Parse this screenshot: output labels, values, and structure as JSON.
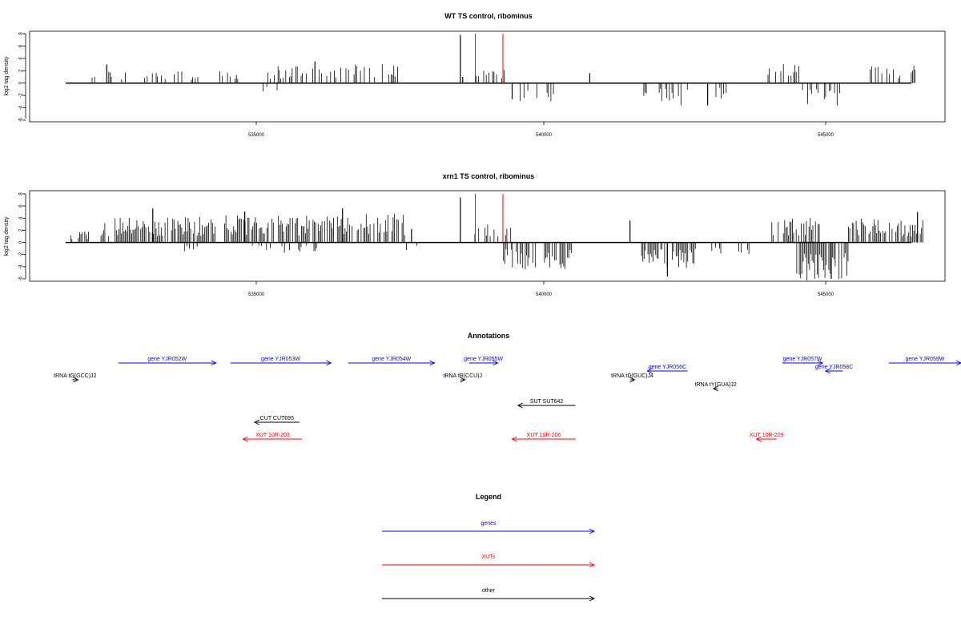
{
  "panels": [
    {
      "title": "WT TS control, ribominus",
      "ylabel": "log2 tag density",
      "yticks": [
        "8",
        "6",
        "4",
        "2",
        "0",
        "-2",
        "-4",
        "-6"
      ],
      "xticks": [
        "535000",
        "540000",
        "545000"
      ]
    },
    {
      "title": "xrn1 TS control, ribominus",
      "ylabel": "log2 tag density",
      "yticks": [
        "8",
        "6",
        "4",
        "2",
        "0",
        "-2",
        "-4",
        "-6"
      ],
      "xticks": [
        "535000",
        "540000",
        "545000"
      ]
    }
  ],
  "annotations_title": "Annotations",
  "legend_title": "Legend",
  "colors": {
    "genes": "#0000ff",
    "xuts": "#ff0000",
    "other": "#000000",
    "highlight": "#ff0000"
  },
  "annotations": [
    {
      "label": "gene YJR052W",
      "type": "genes",
      "x1": 532600,
      "x2": 534300,
      "dir": "right",
      "row": 0
    },
    {
      "label": "gene YJR053W",
      "type": "genes",
      "x1": 534550,
      "x2": 536300,
      "dir": "right",
      "row": 0
    },
    {
      "label": "gene YJR054W",
      "type": "genes",
      "x1": 536600,
      "x2": 538100,
      "dir": "right",
      "row": 0
    },
    {
      "label": "gene YJR055W",
      "type": "genes",
      "x1": 538700,
      "x2": 539200,
      "dir": "right",
      "row": 0
    },
    {
      "label": "gene YJR056C",
      "type": "genes",
      "x1": 541800,
      "x2": 542500,
      "dir": "left",
      "row": 1
    },
    {
      "label": "gene YJR057W",
      "type": "genes",
      "x1": 544150,
      "x2": 544850,
      "dir": "right",
      "row": 0
    },
    {
      "label": "gene YJR058C",
      "type": "genes",
      "x1": 544900,
      "x2": 545200,
      "dir": "left",
      "row": 1
    },
    {
      "label": "gene YJR059W",
      "type": "genes",
      "x1": 546000,
      "x2": 548500,
      "dir": "right",
      "row": 0
    },
    {
      "label": "tRNA tG(GCC)J2",
      "type": "other",
      "x1": 531800,
      "x2": 531900,
      "dir": "right",
      "row": 2
    },
    {
      "label": "tRNA tR(CCU)J",
      "type": "other",
      "x1": 538550,
      "x2": 538630,
      "dir": "right",
      "row": 2
    },
    {
      "label": "tRNA tD(GUC)J4",
      "type": "other",
      "x1": 541500,
      "x2": 541580,
      "dir": "right",
      "row": 2
    },
    {
      "label": "tRNA tY(GUA)J2",
      "type": "other",
      "x1": 542950,
      "x2": 543030,
      "dir": "left",
      "row": 3
    },
    {
      "label": "SUT SUT642",
      "type": "other",
      "x1": 539550,
      "x2": 540550,
      "dir": "left",
      "row": 4
    },
    {
      "label": "CUT CUT695",
      "type": "other",
      "x1": 534970,
      "x2": 535750,
      "dir": "left",
      "row": 5
    },
    {
      "label": "XUT 10R-203",
      "type": "xuts",
      "x1": 534770,
      "x2": 535800,
      "dir": "left",
      "row": 6
    },
    {
      "label": "XUT 10R-206",
      "type": "xuts",
      "x1": 539450,
      "x2": 540550,
      "dir": "left",
      "row": 6
    },
    {
      "label": "XUT 10R-209",
      "type": "xuts",
      "x1": 543700,
      "x2": 544050,
      "dir": "left",
      "row": 6
    }
  ],
  "legend": [
    {
      "label": "genes",
      "type": "genes"
    },
    {
      "label": "XUTs",
      "type": "xuts"
    },
    {
      "label": "other",
      "type": "other"
    }
  ],
  "chart_data": [
    {
      "type": "bar",
      "title": "WT TS control, ribominus",
      "ylabel": "log2 tag density",
      "xlabel": "",
      "xlim": [
        531700,
        546700
      ],
      "ylim": [
        -6,
        8
      ],
      "highlight_lines_x": [
        538810,
        539290
      ],
      "segments": [
        {
          "start": 532100,
          "end": 533800,
          "level": 1.5,
          "sign": 1,
          "density": 0.28,
          "seed": 11
        },
        {
          "start": 533850,
          "end": 534000,
          "level": 0.8,
          "sign": 1,
          "density": 0.3,
          "seed": 12
        },
        {
          "start": 534300,
          "end": 534900,
          "level": 1.5,
          "sign": 1,
          "density": 0.25,
          "seed": 13
        },
        {
          "start": 535050,
          "end": 535450,
          "level": 1.0,
          "sign": -1,
          "density": 0.3,
          "seed": 14
        },
        {
          "start": 535200,
          "end": 536700,
          "level": 2.0,
          "sign": 1,
          "density": 0.3,
          "seed": 15
        },
        {
          "start": 536700,
          "end": 537500,
          "level": 2.2,
          "sign": 1,
          "density": 0.35,
          "seed": 16
        },
        {
          "start": 538800,
          "end": 539400,
          "level": 1.5,
          "sign": 1,
          "density": 0.2,
          "seed": 17
        },
        {
          "start": 539500,
          "end": 540200,
          "level": 2.2,
          "sign": -1,
          "density": 0.3,
          "seed": 18
        },
        {
          "start": 541650,
          "end": 542500,
          "level": 2.6,
          "sign": -1,
          "density": 0.4,
          "seed": 19
        },
        {
          "start": 542950,
          "end": 543200,
          "level": 2.0,
          "sign": -1,
          "density": 0.2,
          "seed": 20
        },
        {
          "start": 543900,
          "end": 544600,
          "level": 2.2,
          "sign": 1,
          "density": 0.35,
          "seed": 21
        },
        {
          "start": 544500,
          "end": 545200,
          "level": 2.8,
          "sign": -1,
          "density": 0.45,
          "seed": 22
        },
        {
          "start": 545500,
          "end": 546600,
          "level": 2.2,
          "sign": 1,
          "density": 0.35,
          "seed": 23
        }
      ],
      "spikes": [
        {
          "x": 538550,
          "y": 7.8
        },
        {
          "x": 538590,
          "y": 1.0
        },
        {
          "x": 536020,
          "y": 3.5
        },
        {
          "x": 532400,
          "y": 3.0
        },
        {
          "x": 540800,
          "y": 1.6
        },
        {
          "x": 541100,
          "y": 0.0
        },
        {
          "x": 542850,
          "y": -3.6
        },
        {
          "x": 539450,
          "y": -2.6
        }
      ]
    },
    {
      "type": "bar",
      "title": "xrn1 TS control, ribominus",
      "ylabel": "log2 tag density",
      "xlabel": "",
      "xlim": [
        531700,
        546700
      ],
      "ylim": [
        -6,
        8
      ],
      "highlight_lines_x": [
        538810,
        539290
      ],
      "segments": [
        {
          "start": 531750,
          "end": 532100,
          "level": 1.5,
          "sign": 1,
          "density": 0.5,
          "seed": 31
        },
        {
          "start": 532300,
          "end": 534300,
          "level": 3.0,
          "sign": 1,
          "density": 0.75,
          "seed": 32
        },
        {
          "start": 533750,
          "end": 534000,
          "level": 1.2,
          "sign": -1,
          "density": 0.3,
          "seed": 33
        },
        {
          "start": 534450,
          "end": 536600,
          "level": 3.2,
          "sign": 1,
          "density": 0.75,
          "seed": 34
        },
        {
          "start": 534800,
          "end": 536200,
          "level": 1.2,
          "sign": -1,
          "density": 0.2,
          "seed": 35
        },
        {
          "start": 536600,
          "end": 537600,
          "level": 3.4,
          "sign": 1,
          "density": 0.7,
          "seed": 36
        },
        {
          "start": 537100,
          "end": 537800,
          "level": 1.2,
          "sign": -1,
          "density": 0.2,
          "seed": 37
        },
        {
          "start": 538600,
          "end": 539500,
          "level": 2.2,
          "sign": 1,
          "density": 0.4,
          "seed": 38
        },
        {
          "start": 539300,
          "end": 540500,
          "level": 3.2,
          "sign": -1,
          "density": 0.75,
          "seed": 39
        },
        {
          "start": 541700,
          "end": 542650,
          "level": 3.0,
          "sign": -1,
          "density": 0.7,
          "seed": 40
        },
        {
          "start": 542900,
          "end": 543600,
          "level": 1.5,
          "sign": -1,
          "density": 0.25,
          "seed": 41
        },
        {
          "start": 543900,
          "end": 544800,
          "level": 3.0,
          "sign": 1,
          "density": 0.7,
          "seed": 42
        },
        {
          "start": 544400,
          "end": 545300,
          "level": 4.5,
          "sign": -1,
          "density": 0.85,
          "seed": 43
        },
        {
          "start": 545300,
          "end": 546600,
          "level": 2.8,
          "sign": 1,
          "density": 0.7,
          "seed": 44
        }
      ],
      "spikes": [
        {
          "x": 538550,
          "y": 7.4
        },
        {
          "x": 533200,
          "y": 5.6
        },
        {
          "x": 536500,
          "y": 5.6
        },
        {
          "x": 534800,
          "y": 5.1
        },
        {
          "x": 537700,
          "y": 2.2
        },
        {
          "x": 541500,
          "y": 3.6
        },
        {
          "x": 546500,
          "y": 5.0
        },
        {
          "x": 545000,
          "y": -6.0
        },
        {
          "x": 542150,
          "y": -5.6
        }
      ]
    }
  ]
}
